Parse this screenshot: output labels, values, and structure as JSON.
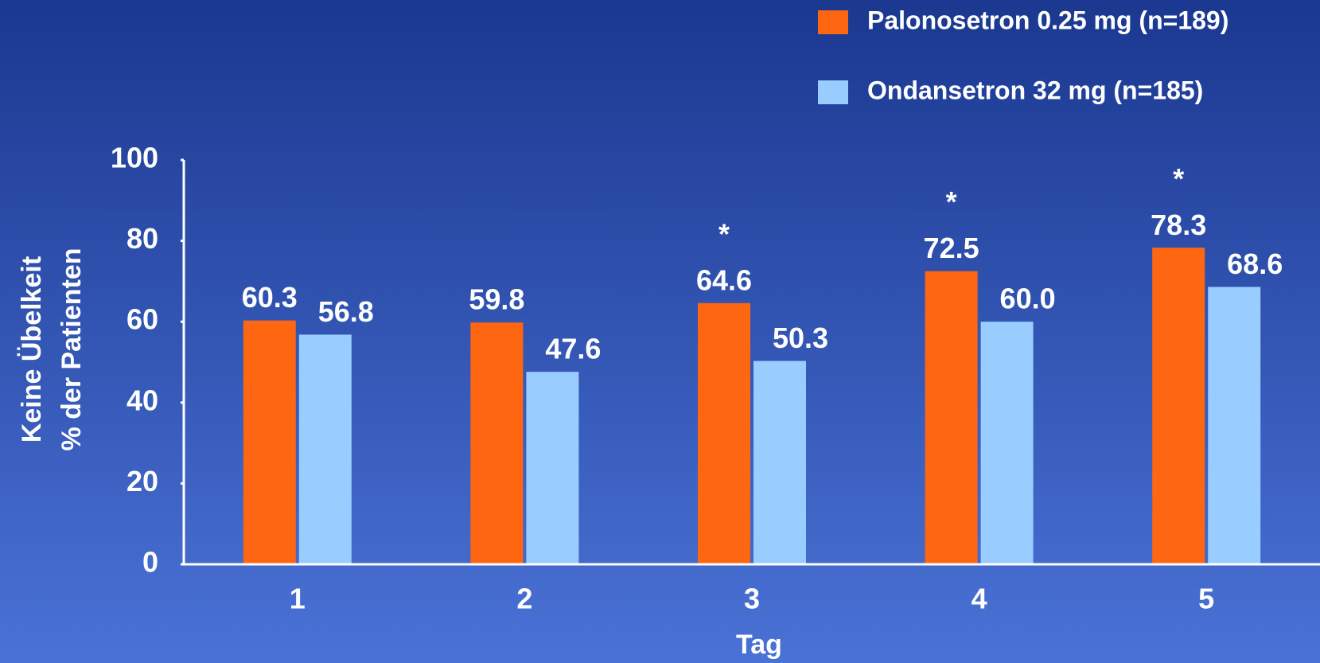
{
  "chart_data": {
    "type": "bar",
    "categories": [
      "1",
      "2",
      "3",
      "4",
      "5"
    ],
    "series": [
      {
        "name": "Palonosetron 0.25 mg (n=189)",
        "color": "#ff6611",
        "values": [
          60.3,
          59.8,
          64.6,
          72.5,
          78.3
        ]
      },
      {
        "name": "Ondansetron 32 mg (n=185)",
        "color": "#99ccff",
        "values": [
          56.8,
          47.6,
          50.3,
          60.0,
          68.6
        ],
        "value_labels": [
          "56.8",
          "47.6",
          "50.3",
          "60.0",
          "68.6"
        ]
      }
    ],
    "xlabel": "Tag",
    "ylabel": [
      "Keine Übelkeit",
      "% der Patienten"
    ],
    "ylim": [
      0,
      100
    ],
    "yticks": [
      0,
      20,
      40,
      60,
      80,
      100
    ],
    "annotations": [
      {
        "category": "3",
        "text": "*"
      },
      {
        "category": "4",
        "text": "*"
      },
      {
        "category": "5",
        "text": "*"
      }
    ],
    "legend": "top-right",
    "grid": false
  }
}
